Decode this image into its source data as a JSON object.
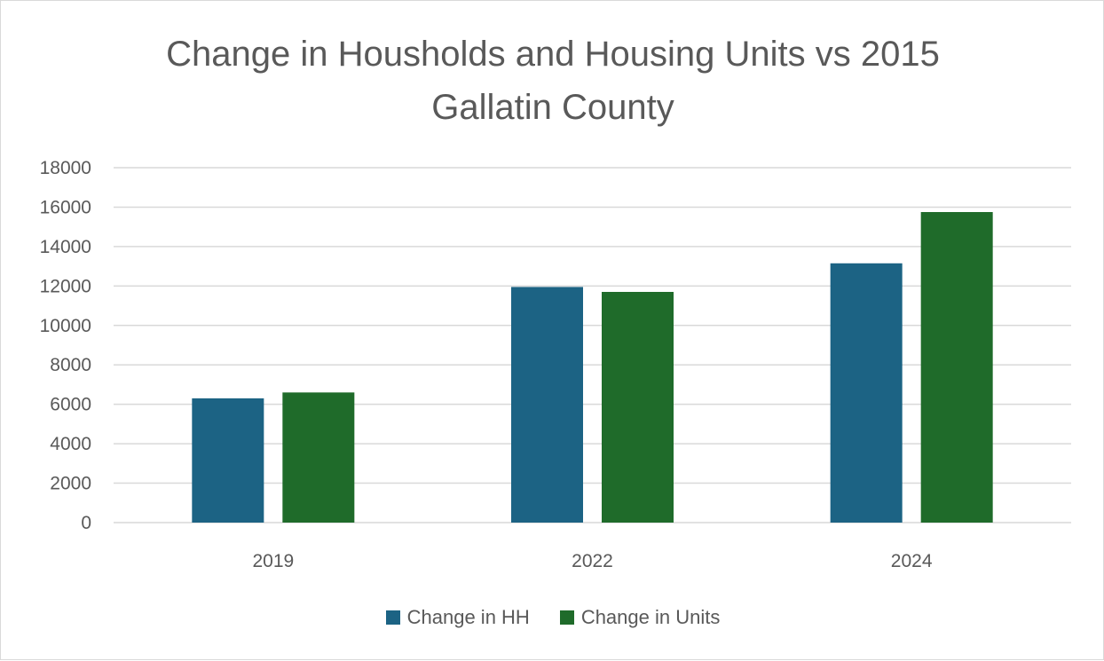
{
  "chart_data": {
    "type": "bar",
    "title": "Change in Housholds and Housing Units vs 2015",
    "subtitle": "Gallatin County",
    "categories": [
      "2019",
      "2022",
      "2024"
    ],
    "series": [
      {
        "name": "Change in HH",
        "values": [
          6300,
          11950,
          13150
        ],
        "color": "#1c6384"
      },
      {
        "name": "Change in Units",
        "values": [
          6600,
          11700,
          15750
        ],
        "color": "#1f6b2a"
      }
    ],
    "ylim": [
      0,
      18000
    ],
    "yticks": [
      "0",
      "2000",
      "4000",
      "6000",
      "8000",
      "10000",
      "12000",
      "14000",
      "16000",
      "18000"
    ],
    "grid": true,
    "legend_position": "bottom"
  }
}
